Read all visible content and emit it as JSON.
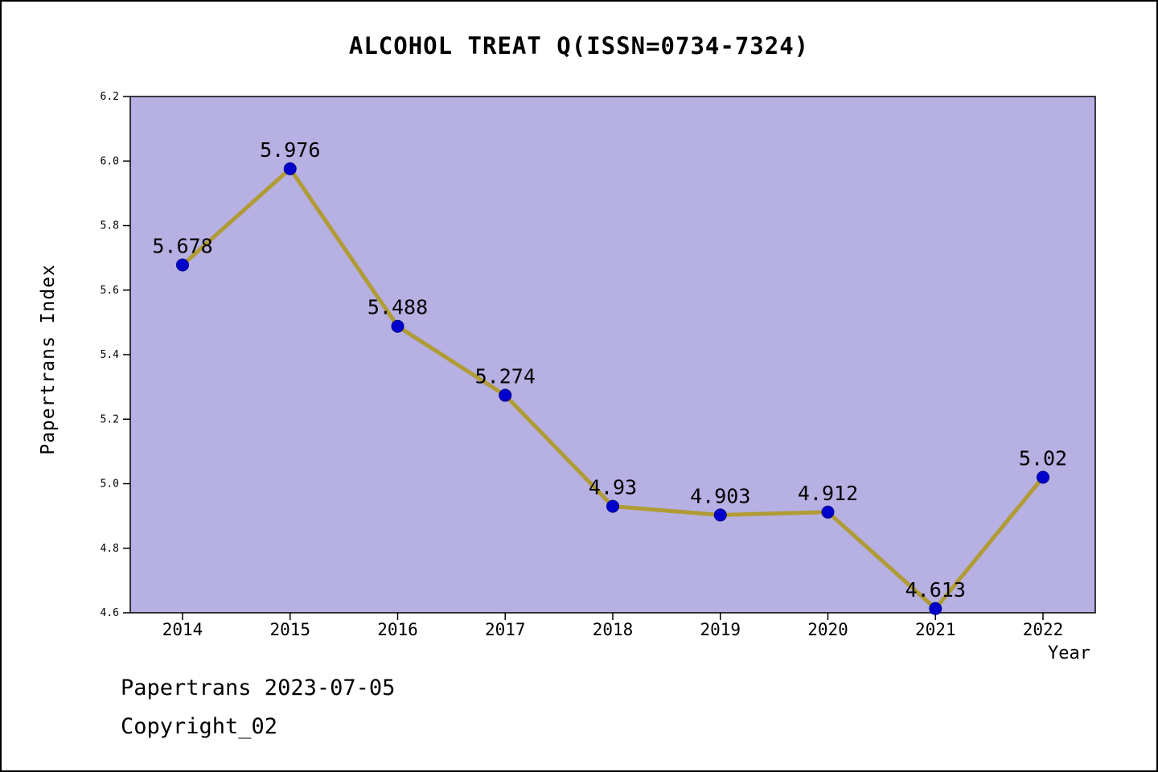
{
  "title": "ALCOHOL TREAT Q(ISSN=0734-7324)",
  "footer": {
    "source_line": "Papertrans 2023-07-05",
    "copyright_line": "Copyright_02"
  },
  "chart_data": {
    "type": "line",
    "title": "ALCOHOL TREAT Q(ISSN=0734-7324)",
    "xlabel": "Year",
    "ylabel": "Papertrans Index",
    "categories": [
      2014,
      2015,
      2016,
      2017,
      2018,
      2019,
      2020,
      2021,
      2022
    ],
    "values": [
      5.678,
      5.976,
      5.488,
      5.274,
      4.93,
      4.903,
      4.912,
      4.613,
      5.02
    ],
    "point_labels": [
      "5.678",
      "5.976",
      "5.488",
      "5.274",
      "4.93",
      "4.903",
      "4.912",
      "4.613",
      "5.02"
    ],
    "ylim": [
      4.6,
      6.2
    ],
    "yticks": [
      4.6,
      4.8,
      5.0,
      5.2,
      5.4,
      5.6,
      5.8,
      6.0,
      6.2
    ],
    "grid": false,
    "legend": "none",
    "colors": {
      "plot_background": "#b6b0e3",
      "line": "#b09b35",
      "marker_fill": "#0000cd",
      "marker_edge": "#00008b",
      "axis": "#000000",
      "text": "#000000"
    }
  }
}
